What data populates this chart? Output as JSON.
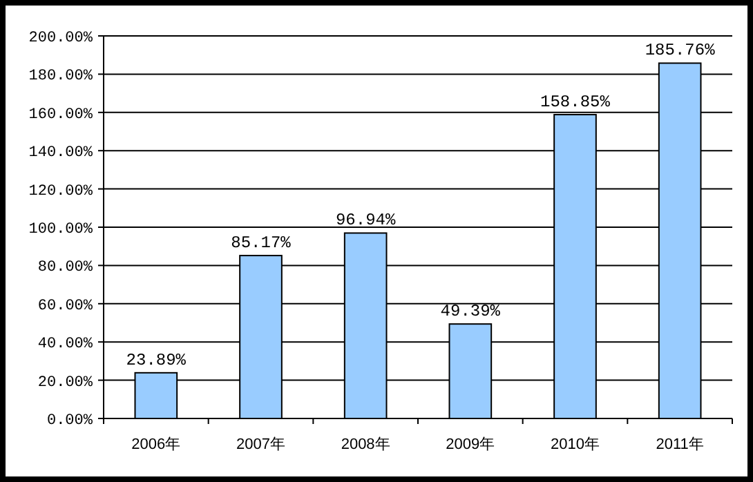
{
  "chart_data": {
    "type": "bar",
    "categories": [
      "2006年",
      "2007年",
      "2008年",
      "2009年",
      "2010年",
      "2011年"
    ],
    "series": [
      {
        "color": "#99ccff",
        "values": [
          23.89,
          85.17,
          96.94,
          49.39,
          158.85,
          185.76
        ]
      }
    ],
    "value_labels": [
      "23.89%",
      "85.17%",
      "96.94%",
      "49.39%",
      "158.85%",
      "185.76%"
    ],
    "ylim": [
      0,
      200
    ],
    "yticks": [
      {
        "value": 0,
        "label": "0.00%"
      },
      {
        "value": 20,
        "label": "20.00%"
      },
      {
        "value": 40,
        "label": "40.00%"
      },
      {
        "value": 60,
        "label": "60.00%"
      },
      {
        "value": 80,
        "label": "80.00%"
      },
      {
        "value": 100,
        "label": "100.00%"
      },
      {
        "value": 120,
        "label": "120.00%"
      },
      {
        "value": 140,
        "label": "140.00%"
      },
      {
        "value": 160,
        "label": "160.00%"
      },
      {
        "value": 180,
        "label": "180.00%"
      },
      {
        "value": 200,
        "label": "200.00%"
      }
    ],
    "grid": "y"
  }
}
